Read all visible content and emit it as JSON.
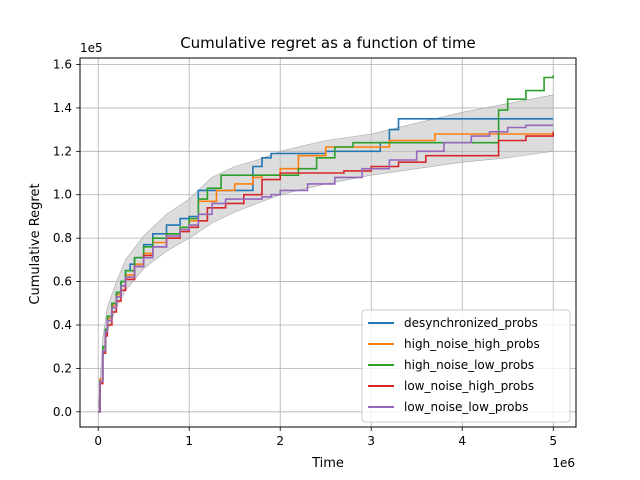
{
  "chart_data": {
    "type": "line",
    "title": "Cumulative regret as a function of time",
    "xlabel": "Time",
    "ylabel": "Cumulative Regret",
    "x_multiplier_label": "1e6",
    "y_multiplier_label": "1e5",
    "xlim": [
      -0.2,
      5.25
    ],
    "ylim": [
      -0.07,
      1.63
    ],
    "xticks": [
      0,
      1,
      2,
      3,
      4,
      5
    ],
    "yticks": [
      0.0,
      0.2,
      0.4,
      0.6,
      0.8,
      1.0,
      1.2,
      1.4,
      1.6
    ],
    "xtick_labels": [
      "0",
      "1",
      "2",
      "3",
      "4",
      "5"
    ],
    "ytick_labels": [
      "0.0",
      "0.2",
      "0.4",
      "0.6",
      "0.8",
      "1.0",
      "1.2",
      "1.4",
      "1.6"
    ],
    "grid": true,
    "legend_position": "lower-right",
    "band_color": "#bfbfbf",
    "series": [
      {
        "name": "desynchronized_probs",
        "color": "#1f77b4",
        "x": [
          0,
          0.02,
          0.05,
          0.08,
          0.1,
          0.15,
          0.2,
          0.25,
          0.3,
          0.35,
          0.4,
          0.5,
          0.6,
          0.75,
          0.9,
          1.0,
          1.1,
          1.25,
          1.4,
          1.6,
          1.7,
          1.8,
          1.9,
          2.0,
          2.2,
          2.5,
          2.8,
          3.0,
          3.1,
          3.2,
          3.3,
          3.6,
          4.0,
          4.5,
          5.0
        ],
        "y": [
          0.0,
          0.15,
          0.3,
          0.38,
          0.44,
          0.5,
          0.55,
          0.6,
          0.65,
          0.68,
          0.71,
          0.77,
          0.82,
          0.86,
          0.89,
          0.9,
          1.02,
          1.02,
          1.02,
          1.02,
          1.13,
          1.17,
          1.19,
          1.19,
          1.19,
          1.2,
          1.2,
          1.2,
          1.24,
          1.3,
          1.35,
          1.35,
          1.35,
          1.35,
          1.35
        ]
      },
      {
        "name": "high_noise_high_probs",
        "color": "#ff7f0e",
        "x": [
          0,
          0.02,
          0.05,
          0.08,
          0.1,
          0.15,
          0.2,
          0.25,
          0.3,
          0.4,
          0.5,
          0.6,
          0.75,
          0.9,
          1.0,
          1.1,
          1.3,
          1.5,
          1.7,
          1.8,
          2.0,
          2.2,
          2.5,
          2.8,
          3.0,
          3.2,
          3.5,
          3.7,
          4.0,
          4.3,
          4.5,
          5.0
        ],
        "y": [
          0.0,
          0.15,
          0.28,
          0.36,
          0.43,
          0.49,
          0.54,
          0.58,
          0.63,
          0.68,
          0.73,
          0.78,
          0.82,
          0.85,
          0.88,
          0.97,
          1.02,
          1.05,
          1.08,
          1.09,
          1.12,
          1.18,
          1.22,
          1.22,
          1.22,
          1.25,
          1.25,
          1.28,
          1.28,
          1.28,
          1.28,
          1.28
        ]
      },
      {
        "name": "high_noise_low_probs",
        "color": "#2ca02c",
        "x": [
          0,
          0.02,
          0.05,
          0.08,
          0.1,
          0.15,
          0.2,
          0.25,
          0.3,
          0.4,
          0.5,
          0.6,
          0.75,
          0.9,
          1.0,
          1.1,
          1.2,
          1.35,
          1.5,
          1.7,
          1.9,
          2.0,
          2.2,
          2.4,
          2.6,
          2.8,
          3.0,
          3.2,
          3.5,
          4.0,
          4.3,
          4.4,
          4.5,
          4.7,
          4.9,
          5.0
        ],
        "y": [
          0.0,
          0.14,
          0.3,
          0.38,
          0.44,
          0.5,
          0.55,
          0.6,
          0.65,
          0.71,
          0.76,
          0.8,
          0.82,
          0.85,
          0.89,
          0.98,
          1.03,
          1.09,
          1.09,
          1.09,
          1.09,
          1.09,
          1.12,
          1.17,
          1.22,
          1.24,
          1.24,
          1.24,
          1.24,
          1.24,
          1.24,
          1.39,
          1.44,
          1.48,
          1.54,
          1.55
        ]
      },
      {
        "name": "low_noise_high_probs",
        "color": "#d62728",
        "x": [
          0,
          0.02,
          0.05,
          0.08,
          0.1,
          0.15,
          0.2,
          0.25,
          0.3,
          0.4,
          0.5,
          0.6,
          0.75,
          0.9,
          1.0,
          1.1,
          1.2,
          1.4,
          1.6,
          1.8,
          2.0,
          2.4,
          2.7,
          3.0,
          3.3,
          3.6,
          4.0,
          4.3,
          4.4,
          4.7,
          5.0
        ],
        "y": [
          0.0,
          0.13,
          0.27,
          0.35,
          0.4,
          0.46,
          0.51,
          0.56,
          0.61,
          0.67,
          0.72,
          0.76,
          0.8,
          0.83,
          0.85,
          0.88,
          0.94,
          0.96,
          1.0,
          1.07,
          1.1,
          1.1,
          1.11,
          1.13,
          1.15,
          1.18,
          1.18,
          1.18,
          1.25,
          1.27,
          1.29
        ]
      },
      {
        "name": "low_noise_low_probs",
        "color": "#9467bd",
        "x": [
          0,
          0.02,
          0.05,
          0.08,
          0.1,
          0.15,
          0.2,
          0.25,
          0.3,
          0.4,
          0.5,
          0.6,
          0.75,
          0.9,
          1.0,
          1.1,
          1.25,
          1.4,
          1.6,
          1.8,
          1.9,
          2.0,
          2.3,
          2.6,
          2.9,
          3.2,
          3.5,
          3.8,
          4.1,
          4.3,
          4.5,
          4.7,
          5.0
        ],
        "y": [
          0.0,
          0.14,
          0.28,
          0.37,
          0.42,
          0.48,
          0.53,
          0.58,
          0.62,
          0.67,
          0.71,
          0.76,
          0.81,
          0.84,
          0.86,
          0.91,
          0.96,
          0.98,
          0.98,
          0.99,
          1.0,
          1.02,
          1.05,
          1.08,
          1.12,
          1.16,
          1.2,
          1.24,
          1.27,
          1.29,
          1.31,
          1.32,
          1.32
        ]
      }
    ],
    "band": {
      "x": [
        0,
        0.05,
        0.1,
        0.2,
        0.3,
        0.5,
        0.75,
        1.0,
        1.25,
        1.5,
        1.75,
        2.0,
        2.5,
        3.0,
        3.5,
        4.0,
        4.5,
        5.0
      ],
      "upper": [
        0.0,
        0.34,
        0.48,
        0.6,
        0.7,
        0.81,
        0.91,
        0.98,
        1.08,
        1.13,
        1.16,
        1.2,
        1.25,
        1.28,
        1.33,
        1.38,
        1.42,
        1.46
      ],
      "lower": [
        0.0,
        0.24,
        0.37,
        0.48,
        0.56,
        0.66,
        0.74,
        0.8,
        0.87,
        0.92,
        0.96,
        1.0,
        1.05,
        1.09,
        1.12,
        1.15,
        1.17,
        1.2
      ]
    }
  }
}
